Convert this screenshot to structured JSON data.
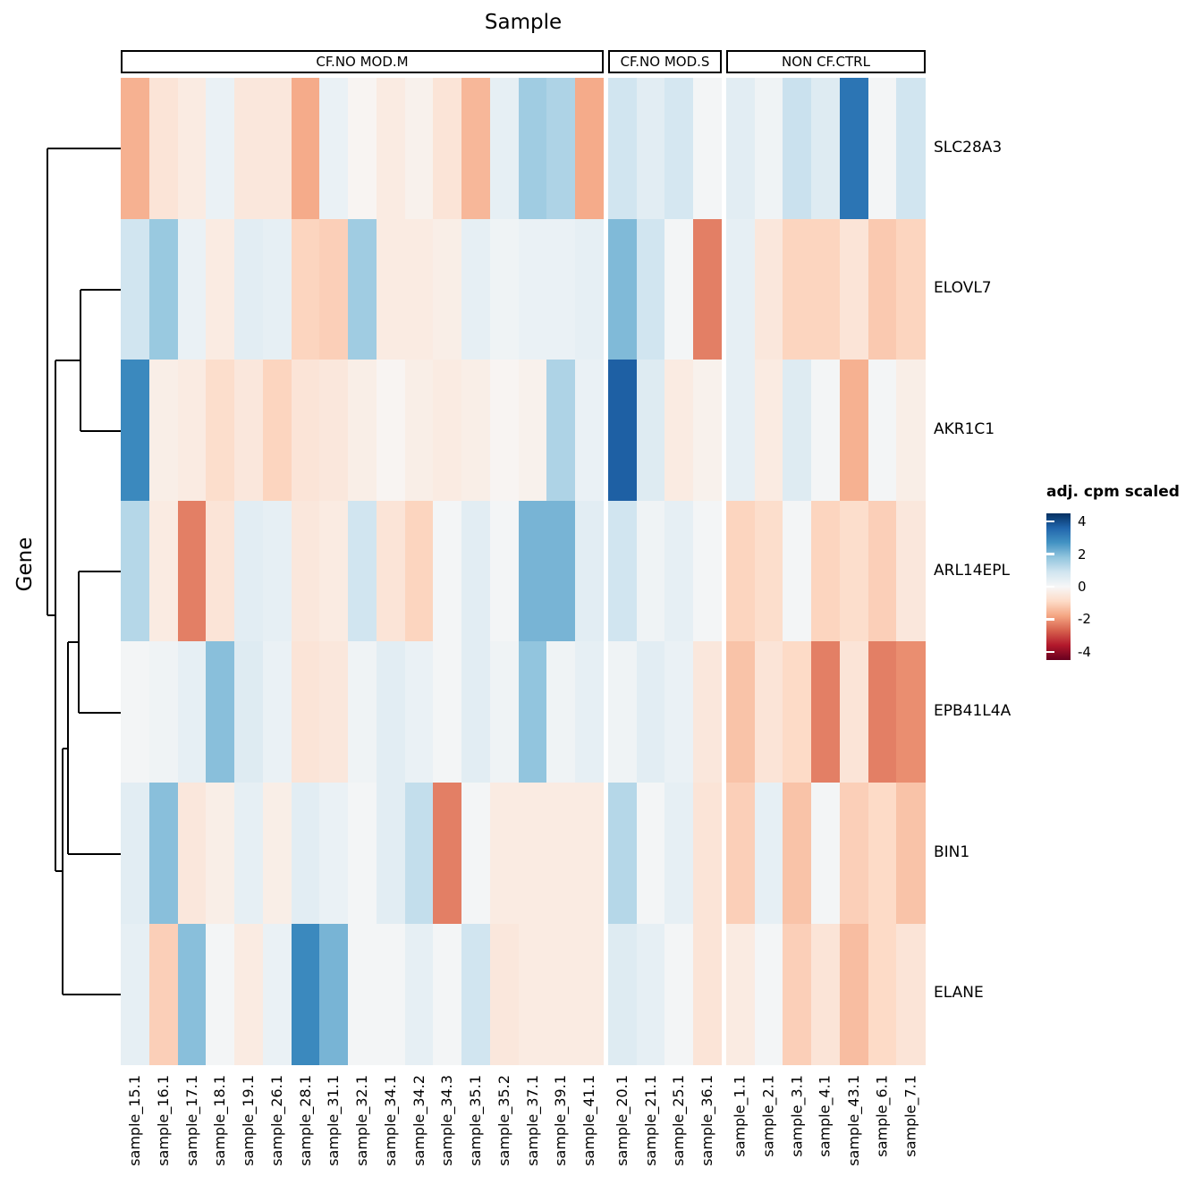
{
  "title": "Sample",
  "y_axis_title": "Gene",
  "legend": {
    "title": "adj. cpm scaled",
    "ticks": [
      4,
      2,
      0,
      -2,
      -4
    ]
  },
  "facets": [
    {
      "label": "CF.NO MOD.M"
    },
    {
      "label": "CF.NO MOD.S"
    },
    {
      "label": "NON CF.CTRL"
    }
  ],
  "chart_data": {
    "type": "heatmap",
    "title": "Sample",
    "xlabel": "Sample",
    "ylabel": "Gene",
    "legend_title": "adj. cpm scaled",
    "color_domain": [
      -4.5,
      4.5
    ],
    "colorscale": [
      "#67001f",
      "#b2182b",
      "#d6604d",
      "#f4a582",
      "#fddbc7",
      "#f7f7f7",
      "#d1e5f0",
      "#92c5de",
      "#4393c3",
      "#2166ac",
      "#053061"
    ],
    "facet_labels": [
      "CF.NO MOD.M",
      "CF.NO MOD.S",
      "NON CF.CTRL"
    ],
    "facet_sizes": [
      17,
      4,
      7
    ],
    "columns": [
      "sample_15.1",
      "sample_16.1",
      "sample_17.1",
      "sample_18.1",
      "sample_19.1",
      "sample_26.1",
      "sample_28.1",
      "sample_31.1",
      "sample_32.1",
      "sample_34.1",
      "sample_34.2",
      "sample_34.3",
      "sample_35.1",
      "sample_35.2",
      "sample_37.1",
      "sample_39.1",
      "sample_41.1",
      "sample_20.1",
      "sample_21.1",
      "sample_25.1",
      "sample_36.1",
      "sample_1.1",
      "sample_2.1",
      "sample_3.1",
      "sample_4.1",
      "sample_43.1",
      "sample_6.1",
      "sample_7.1"
    ],
    "genes": [
      "SLC28A3",
      "ELOVL7",
      "AKR1C1",
      "ARL14EPL",
      "EPB41L4A",
      "BIN1",
      "ELANE"
    ],
    "values": [
      [
        -1.6,
        -0.6,
        -0.4,
        0.3,
        -0.5,
        -0.5,
        -1.7,
        0.3,
        -0.1,
        -0.4,
        -0.2,
        -0.6,
        -1.5,
        0.4,
        1.6,
        1.4,
        -1.7,
        0.9,
        0.5,
        0.8,
        0.1,
        0.5,
        0.2,
        1.0,
        0.6,
        3.3,
        0.1,
        0.9
      ],
      [
        0.9,
        1.7,
        0.3,
        -0.4,
        0.5,
        0.4,
        -1.0,
        -1.1,
        1.6,
        -0.4,
        -0.4,
        -0.3,
        0.4,
        0.2,
        0.3,
        0.3,
        0.4,
        2.0,
        0.9,
        0.1,
        -2.3,
        0.4,
        -0.5,
        -1.0,
        -1.0,
        -0.6,
        -1.2,
        -1.0
      ],
      [
        2.9,
        -0.3,
        -0.4,
        -0.8,
        -0.5,
        -1.0,
        -0.6,
        -0.5,
        -0.3,
        -0.1,
        -0.3,
        -0.4,
        -0.3,
        -0.1,
        -0.2,
        1.4,
        0.3,
        3.7,
        0.6,
        -0.4,
        -0.2,
        0.4,
        -0.4,
        0.6,
        0.1,
        -1.6,
        0.1,
        -0.3
      ],
      [
        1.3,
        -0.4,
        -2.3,
        -0.6,
        0.5,
        0.4,
        -0.5,
        -0.4,
        0.9,
        -0.6,
        -1.0,
        0.1,
        0.5,
        0.1,
        2.1,
        2.1,
        0.5,
        0.9,
        0.2,
        0.4,
        0.1,
        -1.0,
        -0.8,
        0.1,
        -1.0,
        -0.8,
        -1.1,
        -0.5
      ],
      [
        0.1,
        0.2,
        0.4,
        1.9,
        0.6,
        0.3,
        -0.6,
        -0.5,
        0.2,
        0.5,
        0.3,
        0.1,
        0.5,
        0.2,
        1.8,
        0.2,
        0.4,
        0.2,
        0.5,
        0.3,
        -0.5,
        -1.3,
        -0.6,
        -0.9,
        -2.3,
        -0.6,
        -2.3,
        -2.1
      ],
      [
        0.5,
        1.9,
        -0.5,
        -0.3,
        0.4,
        -0.3,
        0.5,
        0.3,
        0.1,
        0.5,
        1.1,
        -2.3,
        0.1,
        -0.4,
        -0.4,
        -0.4,
        -0.4,
        1.3,
        0.1,
        0.4,
        -0.6,
        -1.1,
        0.4,
        -1.3,
        0.1,
        -1.1,
        -0.9,
        -1.3
      ],
      [
        0.4,
        -1.1,
        1.9,
        0.1,
        -0.4,
        0.3,
        2.9,
        2.1,
        0.1,
        0.1,
        0.4,
        0.1,
        0.9,
        -0.5,
        -0.4,
        -0.4,
        -0.4,
        0.6,
        0.4,
        0.1,
        -0.6,
        -0.4,
        0.1,
        -1.1,
        -0.6,
        -1.4,
        -0.9,
        -0.6
      ]
    ],
    "dendrogram_segments": [
      [
        135,
        166,
        53,
        166
      ],
      [
        53,
        166,
        53,
        688
      ],
      [
        53,
        688,
        62,
        688
      ],
      [
        62,
        403,
        62,
        974
      ],
      [
        62,
        403,
        90,
        403
      ],
      [
        90,
        324,
        90,
        482
      ],
      [
        90,
        324,
        135,
        324
      ],
      [
        90,
        482,
        135,
        482
      ],
      [
        62,
        974,
        70,
        974
      ],
      [
        70,
        837,
        70,
        1112
      ],
      [
        70,
        1112,
        135,
        1112
      ],
      [
        70,
        837,
        76,
        837
      ],
      [
        76,
        718,
        76,
        955
      ],
      [
        76,
        955,
        135,
        955
      ],
      [
        76,
        718,
        88,
        718
      ],
      [
        88,
        639,
        88,
        797
      ],
      [
        88,
        639,
        135,
        639
      ],
      [
        88,
        797,
        135,
        797
      ]
    ],
    "legend_ticks": [
      4,
      2,
      0,
      -2,
      -4
    ]
  }
}
